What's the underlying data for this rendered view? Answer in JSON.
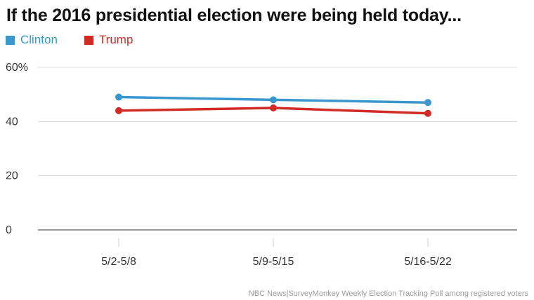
{
  "title": "If the 2016 presidential election were being held today...",
  "source": "NBC News|SurveyMonkey Weekly Election Tracking Poll among registered voters",
  "legend": [
    {
      "label": "Clinton",
      "color": "#3a97cd"
    },
    {
      "label": "Trump",
      "color": "#d22b25"
    }
  ],
  "chart_data": {
    "type": "line",
    "title": "If the 2016 presidential election were being held today...",
    "categories": [
      "5/2-5/8",
      "5/9-5/15",
      "5/16-5/22"
    ],
    "series": [
      {
        "name": "Clinton",
        "color": "#3a97cd",
        "values": [
          49,
          48,
          47
        ]
      },
      {
        "name": "Trump",
        "color": "#d22b25",
        "values": [
          44,
          45,
          43
        ]
      }
    ],
    "ylim": [
      0,
      60
    ],
    "y_ticks": [
      "0",
      "20",
      "40",
      "60%"
    ],
    "y_tick_values": [
      0,
      20,
      40,
      60
    ],
    "grid": true,
    "legend_position": "top-left",
    "xlabel": "",
    "ylabel": ""
  }
}
